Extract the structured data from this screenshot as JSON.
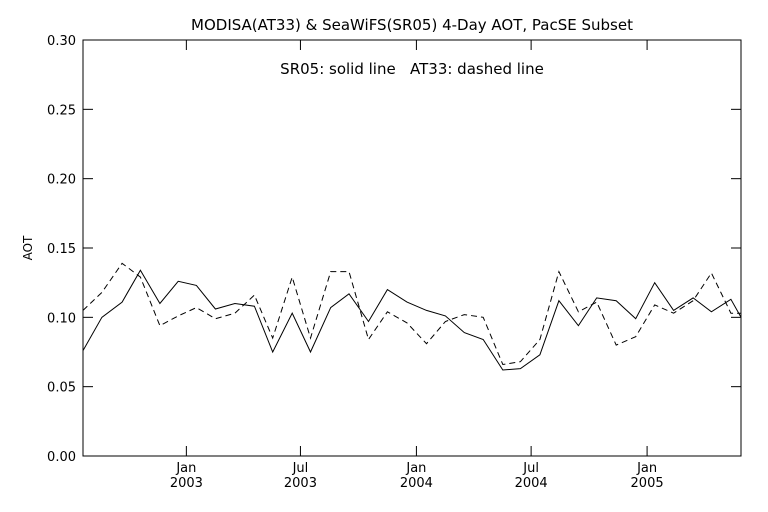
{
  "chart_data": {
    "type": "line",
    "title": "MODISA(AT33) & SeaWiFS(SR05) 4-Day AOT, PacSE Subset",
    "annotation": "SR05: solid line   AT33: dashed line",
    "xlabel": "",
    "ylabel": "AOT",
    "ylim": [
      0.0,
      0.3
    ],
    "yticks": [
      "0.00",
      "0.05",
      "0.10",
      "0.15",
      "0.20",
      "0.25",
      "0.30"
    ],
    "xlim": [
      "2002-07-21",
      "2005-05-30"
    ],
    "xticks": [
      {
        "date": "2003-01-01",
        "top": "Jan",
        "bottom": "2003"
      },
      {
        "date": "2003-07-01",
        "top": "Jul",
        "bottom": "2003"
      },
      {
        "date": "2004-01-01",
        "top": "Jan",
        "bottom": "2004"
      },
      {
        "date": "2004-07-01",
        "top": "Jul",
        "bottom": "2004"
      },
      {
        "date": "2005-01-01",
        "top": "Jan",
        "bottom": "2005"
      }
    ],
    "grid": false,
    "series": [
      {
        "name": "SR05",
        "style": "solid",
        "x": [
          "2002-07-21",
          "2002-08-20",
          "2002-09-21",
          "2002-10-20",
          "2002-11-20",
          "2002-12-19",
          "2003-01-17",
          "2003-02-16",
          "2003-03-19",
          "2003-04-19",
          "2003-05-18",
          "2003-06-18",
          "2003-07-17",
          "2003-08-18",
          "2003-09-16",
          "2003-10-17",
          "2003-11-16",
          "2003-12-17",
          "2004-01-17",
          "2004-02-16",
          "2004-03-17",
          "2004-04-16",
          "2004-05-17",
          "2004-06-14",
          "2004-07-15",
          "2004-08-14",
          "2004-09-14",
          "2004-10-13",
          "2004-11-13",
          "2004-12-14",
          "2005-01-13",
          "2005-02-12",
          "2005-03-15",
          "2005-04-13",
          "2005-05-14",
          "2005-05-30"
        ],
        "y": [
          0.076,
          0.1,
          0.111,
          0.134,
          0.11,
          0.126,
          0.123,
          0.106,
          0.11,
          0.108,
          0.075,
          0.103,
          0.075,
          0.107,
          0.117,
          0.097,
          0.12,
          0.111,
          0.105,
          0.101,
          0.089,
          0.084,
          0.062,
          0.063,
          0.073,
          0.112,
          0.094,
          0.114,
          0.112,
          0.099,
          0.125,
          0.105,
          0.114,
          0.104,
          0.113,
          0.1
        ]
      },
      {
        "name": "AT33",
        "style": "dashed",
        "x": [
          "2002-07-21",
          "2002-08-20",
          "2002-09-21",
          "2002-10-20",
          "2002-11-20",
          "2002-12-19",
          "2003-01-17",
          "2003-02-16",
          "2003-03-19",
          "2003-04-19",
          "2003-05-18",
          "2003-06-18",
          "2003-07-17",
          "2003-08-18",
          "2003-09-16",
          "2003-10-17",
          "2003-11-16",
          "2003-12-17",
          "2004-01-17",
          "2004-02-16",
          "2004-03-17",
          "2004-04-16",
          "2004-05-17",
          "2004-06-14",
          "2004-07-15",
          "2004-08-14",
          "2004-09-14",
          "2004-10-13",
          "2004-11-13",
          "2004-12-14",
          "2005-01-13",
          "2005-02-12",
          "2005-03-15",
          "2005-04-13",
          "2005-05-14",
          "2005-05-30"
        ],
        "y": [
          0.105,
          0.118,
          0.139,
          0.129,
          0.094,
          0.101,
          0.107,
          0.099,
          0.103,
          0.116,
          0.085,
          0.129,
          0.085,
          0.133,
          0.133,
          0.084,
          0.104,
          0.096,
          0.081,
          0.097,
          0.102,
          0.1,
          0.066,
          0.068,
          0.084,
          0.133,
          0.104,
          0.111,
          0.08,
          0.086,
          0.109,
          0.103,
          0.112,
          0.132,
          0.103,
          0.103
        ]
      }
    ]
  }
}
